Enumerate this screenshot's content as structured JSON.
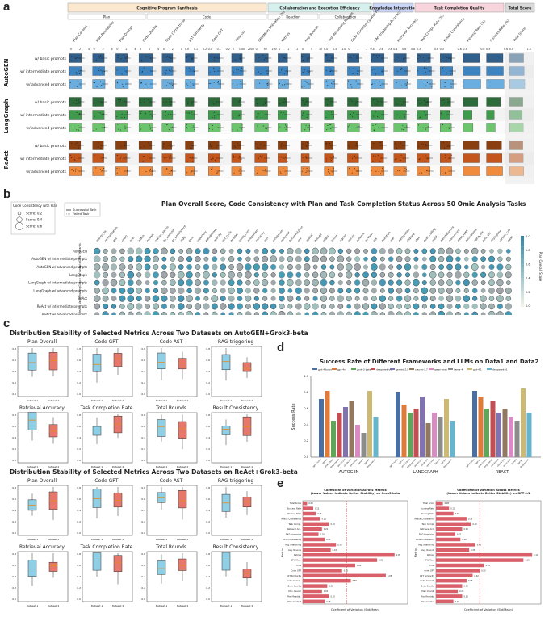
{
  "panels": {
    "a": "a",
    "b": "b",
    "c": "c",
    "d": "d",
    "e": "e"
  },
  "panel_a": {
    "categories": [
      {
        "label": "Cognitive Program Synthesis",
        "color": "#fbe8cf"
      },
      {
        "label": "Collaboration and Execution Efficiency",
        "color": "#d6f0ee"
      },
      {
        "label": "Knowledge Integration",
        "color": "#c9d4f6"
      },
      {
        "label": "Task Completion Quality",
        "color": "#f8d5dc"
      },
      {
        "label": "Total Score",
        "color": "#d9d9d9"
      }
    ],
    "subcategories": [
      "Plan",
      "Code",
      "Reaction",
      "Collaboration"
    ],
    "metrics": [
      "Plan Content",
      "Plan Readability",
      "Plan Overall",
      "Code Quality",
      "Code Correctness",
      "AST Similarity",
      "Code GPT",
      "Time (s)",
      "CPU/Mem Utilization (%)",
      "Retries",
      "Avg. Rounds",
      "Avg. Reasoning Rounds",
      "Code Consistency with Plan",
      "RAG-triggering Accuracy",
      "Retrieval Accuracy",
      "Task Compl. Rate (%)",
      "Result Consistency",
      "Passing Rate (%)",
      "Success Rate (%)",
      "Total Score"
    ],
    "groups": [
      "AutoGEN",
      "LangGraph",
      "ReAct"
    ],
    "rows": [
      "w/ basic prompts",
      "w/ intermediate prompts",
      "w/ advanced prompts"
    ],
    "colors": {
      "AutoGEN": [
        "#2f5f8a",
        "#3d84c0",
        "#6aaee0"
      ],
      "LangGraph": [
        "#2e6b3a",
        "#3f9a4e",
        "#6cc46f"
      ],
      "ReAct": [
        "#8a3f10",
        "#c4561c",
        "#f08a3c"
      ]
    },
    "axis_ticks": [
      [
        "0",
        "2",
        "4"
      ],
      [
        "0",
        "2",
        "4"
      ],
      [
        "0",
        "2",
        "4"
      ],
      [
        "0",
        "2",
        "4"
      ],
      [
        "0",
        "2",
        "4"
      ],
      [
        "0.0",
        "0.1",
        "0.2"
      ],
      [
        "0.0",
        "0.1",
        "0.2"
      ],
      [
        "0",
        "1000",
        "2000"
      ],
      [
        "0",
        "50",
        "100"
      ],
      [
        "0",
        "1",
        "2"
      ],
      [
        "0",
        "5",
        "10"
      ],
      [
        "0.0",
        "0.5",
        "1.0"
      ],
      [
        "0",
        "1",
        "2"
      ],
      [
        "0.4",
        "0.6",
        "0.8"
      ],
      [
        "0.4",
        "0.6",
        "0.8"
      ],
      [
        "0.3",
        "0.6"
      ],
      [
        "0.3",
        "0.6"
      ],
      [
        "0.3",
        "0.6"
      ],
      [
        "0.3",
        "0.6"
      ],
      [
        "0.5",
        "1.0"
      ]
    ]
  },
  "chart_data": [
    {
      "type": "bar",
      "panel": "a",
      "categories": [
        "Plan Content",
        "Plan Readability",
        "Plan Overall",
        "Code Quality",
        "Code Correctness",
        "AST Similarity",
        "Code GPT",
        "Time (s)",
        "CPU/Mem Utilization (%)",
        "Retries",
        "Avg. Rounds",
        "Avg. Reasoning Rounds",
        "Code Consistency with Plan",
        "RAG-triggering Accuracy",
        "Retrieval Accuracy",
        "Task Compl. Rate (%)",
        "Result Consistency",
        "Passing Rate (%)",
        "Success Rate (%)",
        "Total Score"
      ],
      "series": [
        {
          "name": "AutoGEN w/ basic prompts",
          "values": [
            0.62,
            0.6,
            0.6,
            0.7,
            0.55,
            0.45,
            0.6,
            0.55,
            0.7,
            0.5,
            0.45,
            0.5,
            0.6,
            0.7,
            0.65,
            0.7,
            0.6,
            0.85,
            0.85,
            0.72
          ]
        },
        {
          "name": "AutoGEN w/ intermediate prompts",
          "values": [
            0.64,
            0.62,
            0.62,
            0.72,
            0.56,
            0.5,
            0.62,
            0.6,
            0.72,
            0.52,
            0.45,
            0.52,
            0.64,
            0.7,
            0.7,
            0.75,
            0.65,
            0.88,
            0.87,
            0.75
          ]
        },
        {
          "name": "AutoGEN w/ advanced prompts",
          "values": [
            0.66,
            0.64,
            0.65,
            0.74,
            0.58,
            0.52,
            0.65,
            0.58,
            0.74,
            0.55,
            0.48,
            0.55,
            0.66,
            0.72,
            0.72,
            0.78,
            0.68,
            0.9,
            0.9,
            0.78
          ]
        },
        {
          "name": "LangGraph w/ basic prompts",
          "values": [
            0.6,
            0.58,
            0.58,
            0.68,
            0.52,
            0.45,
            0.58,
            0.5,
            0.65,
            0.45,
            0.4,
            0.48,
            0.58,
            0.68,
            0.62,
            0.6,
            0.55,
            0.75,
            0.72,
            0.68
          ]
        },
        {
          "name": "LangGraph w/ intermediate prompts",
          "values": [
            0.62,
            0.6,
            0.6,
            0.7,
            0.55,
            0.48,
            0.6,
            0.52,
            0.67,
            0.48,
            0.42,
            0.5,
            0.6,
            0.7,
            0.65,
            0.55,
            0.5,
            0.45,
            0.4,
            0.65
          ]
        },
        {
          "name": "LangGraph w/ advanced prompts",
          "values": [
            0.64,
            0.62,
            0.62,
            0.72,
            0.57,
            0.5,
            0.62,
            0.55,
            0.7,
            0.5,
            0.45,
            0.52,
            0.62,
            0.72,
            0.68,
            0.62,
            0.58,
            0.5,
            0.45,
            0.7
          ]
        },
        {
          "name": "ReAct w/ basic prompts",
          "values": [
            0.58,
            0.56,
            0.56,
            0.66,
            0.5,
            0.42,
            0.55,
            0.48,
            0.62,
            0.45,
            0.4,
            0.45,
            0.55,
            0.65,
            0.6,
            0.62,
            0.55,
            0.8,
            0.78,
            0.68
          ]
        },
        {
          "name": "ReAct w/ intermediate prompts",
          "values": [
            0.6,
            0.58,
            0.58,
            0.68,
            0.52,
            0.45,
            0.58,
            0.5,
            0.64,
            0.47,
            0.42,
            0.48,
            0.58,
            0.67,
            0.62,
            0.65,
            0.58,
            0.82,
            0.8,
            0.7
          ]
        },
        {
          "name": "ReAct w/ advanced prompts",
          "values": [
            0.62,
            0.6,
            0.6,
            0.7,
            0.54,
            0.47,
            0.6,
            0.52,
            0.66,
            0.5,
            0.44,
            0.5,
            0.6,
            0.7,
            0.65,
            0.68,
            0.6,
            0.85,
            0.83,
            0.73
          ]
        }
      ]
    },
    {
      "type": "scatter",
      "panel": "b",
      "title": "Plan Overall Score, Code Consistency with Plan and Task Completion Status Across 50 Omic Analysis Tasks",
      "rows": [
        "AutoGEN",
        "AutoGEN w/ intermediate prompts",
        "AutoGEN w/ advanced prompts",
        "LangGraph",
        "LangGraph w/ intermediate prompts",
        "LangGraph w/ advanced prompts",
        "ReAct",
        "ReAct w/ intermediate prompts",
        "ReAct w/ advanced prompts"
      ],
      "row_groups": [
        "AutoGEN Variants",
        "LangGraph Variants",
        "ReAct Variants"
      ],
      "columns": [
        "scanpy_qc",
        "normalization",
        "pca",
        "umap",
        "tsne",
        "leiden",
        "louvain",
        "marker_genes",
        "de_analysis",
        "go_enrichment",
        "kegg",
        "gsea",
        "trajectory",
        "pseudotime",
        "velocity",
        "cell_cycle",
        "doublet",
        "batch_corr",
        "integration",
        "harmony",
        "scvi",
        "annotation",
        "celltypist",
        "deconvolution",
        "cnv",
        "spatial",
        "deseq2",
        "edger",
        "limma",
        "wgcna",
        "coexpr",
        "network",
        "survival",
        "cox",
        "mutation",
        "maf",
        "methylation",
        "chipseq",
        "atac",
        "peak_calling",
        "motif",
        "metabolomics",
        "proteomics",
        "mass_spec",
        "microbiome",
        "alpha_div",
        "beta_div",
        "phylogeny",
        "variant_call",
        "gwas"
      ],
      "legend_size_title": "Code Consistency with Plan",
      "legend_sizes": [
        "Score: 0.2",
        "Score: 0.4",
        "Score: 0.6"
      ],
      "legend_status_title": "Task Status",
      "legend_status": [
        "Successful Task",
        "Failed Task"
      ],
      "colorbar_label": "Plan Overall Score",
      "colorbar_ticks": [
        "1.0",
        "0.8",
        "0.6",
        "0.4",
        "0.2",
        "0.0"
      ]
    },
    {
      "type": "bar",
      "panel": "d",
      "title": "Success Rate of Different Frameworks and LLMs on Data1 and Data2",
      "ylabel": "Success Rate",
      "categories": [
        "AUTOGEN",
        "LANGGRAPH",
        "REACT"
      ],
      "series": [
        {
          "name": "gpt-4-turbo",
          "values": [
            0.72,
            0.8,
            0.82
          ]
        },
        {
          "name": "gpt-4o",
          "values": [
            0.82,
            0.65,
            0.75
          ]
        },
        {
          "name": "grok-3-beta",
          "values": [
            0.45,
            0.55,
            0.6
          ]
        },
        {
          "name": "deepseek-v3",
          "values": [
            0.55,
            0.6,
            0.7
          ]
        },
        {
          "name": "gemini-2.5",
          "values": [
            0.62,
            0.75,
            0.55
          ]
        },
        {
          "name": "claude-3.7",
          "values": [
            0.7,
            0.42,
            0.6
          ]
        },
        {
          "name": "qwen-max",
          "values": [
            0.4,
            0.55,
            0.5
          ]
        },
        {
          "name": "llama-4",
          "values": [
            0.3,
            0.5,
            0.45
          ]
        },
        {
          "name": "gpt-4.1",
          "values": [
            0.82,
            0.72,
            0.85
          ]
        },
        {
          "name": "deepseek-r1",
          "values": [
            0.5,
            0.45,
            0.55
          ]
        }
      ],
      "ylim": [
        0,
        1.0
      ]
    },
    {
      "type": "bar",
      "panel": "e-left",
      "title": "Coefficient of Variation Across Metrics (Lower Values Indicate Better Stability) on Grok3-beta",
      "xlabel": "Coefficient of Variation (Std/Mean)",
      "ylabel": "Metrics",
      "categories": [
        "Total Score",
        "Success Rate",
        "Passing Rate",
        "Result Consistency",
        "Task Compl.",
        "Retrieval Acc.",
        "RAG-triggering",
        "Code Consistency",
        "Avg. Reasoning",
        "Avg. Rounds",
        "Retries",
        "CPU/Mem",
        "Time",
        "Code GPT",
        "AST Similarity",
        "Code Correct.",
        "Code Quality",
        "Plan Overall",
        "Plan Readab.",
        "Plan Content"
      ],
      "values": [
        0.05,
        0.12,
        0.15,
        0.2,
        0.3,
        0.22,
        0.18,
        0.25,
        0.38,
        0.32,
        1.05,
        0.85,
        0.6,
        0.45,
        0.95,
        0.55,
        0.28,
        0.22,
        0.3,
        0.25
      ],
      "reference_line": 0.5
    },
    {
      "type": "bar",
      "panel": "e-right",
      "title": "Coefficient of Variation Across Metrics (Lower Values Indicate Better Stability) on GPT-4.1",
      "xlabel": "Coefficient of Variation (Std/Mean)",
      "ylabel": "Metrics",
      "categories": [
        "Total Score",
        "Success Rate",
        "Passing Rate",
        "Result Consistency",
        "Task Compl.",
        "Retrieval Acc.",
        "RAG-triggering",
        "Code Consistency",
        "Avg. Reasoning",
        "Avg. Rounds",
        "Retries",
        "CPU/Mem",
        "Time",
        "Code GPT",
        "AST Similarity",
        "Code Correct.",
        "Code Quality",
        "Plan Overall",
        "Plan Readab.",
        "Plan Content"
      ],
      "values": [
        0.08,
        0.15,
        0.2,
        0.35,
        0.4,
        0.3,
        0.22,
        0.28,
        0.45,
        0.38,
        1.1,
        1.0,
        0.55,
        0.5,
        0.42,
        0.35,
        0.3,
        0.25,
        0.3,
        0.2
      ],
      "reference_line": 0.5
    }
  ],
  "panel_c": {
    "title1": "Distribution Stability of Selected Metrics Across Two Datasets on AutoGEN+Grok3-beta",
    "title2": "Distribution Stability of Selected Metrics Across Two Datasets on ReAct+Grok3-beta",
    "metrics": [
      "Plan Overall",
      "Code GPT",
      "Code AST",
      "RAG-triggering",
      "Retrieval Accuracy",
      "Task Completion Rate",
      "Total Rounds",
      "Result Consistency"
    ],
    "xticks": [
      "Dataset 1",
      "Dataset 2"
    ],
    "box1_color": "#8ecfe6",
    "box2_color": "#e8776b"
  }
}
